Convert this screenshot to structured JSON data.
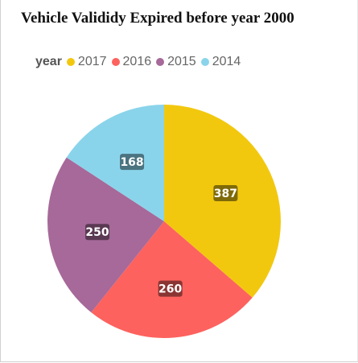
{
  "title": "Vehicle Valididy Expired before year 2000",
  "chart_data": {
    "type": "pie",
    "title": "Vehicle Valididy Expired before year 2000",
    "legend_title": "year",
    "legend_position": "top-left",
    "slices": [
      {
        "label": "2017",
        "value": 387,
        "color": "#F2C80F",
        "label_bg": "#7F6A08"
      },
      {
        "label": "2016",
        "value": 260,
        "color": "#FD625E",
        "label_bg": "#8A3533"
      },
      {
        "label": "2015",
        "value": 250,
        "color": "#A66999",
        "label_bg": "#5A3953"
      },
      {
        "label": "2014",
        "value": 168,
        "color": "#8AD4EB",
        "label_bg": "#4B7380"
      }
    ]
  }
}
